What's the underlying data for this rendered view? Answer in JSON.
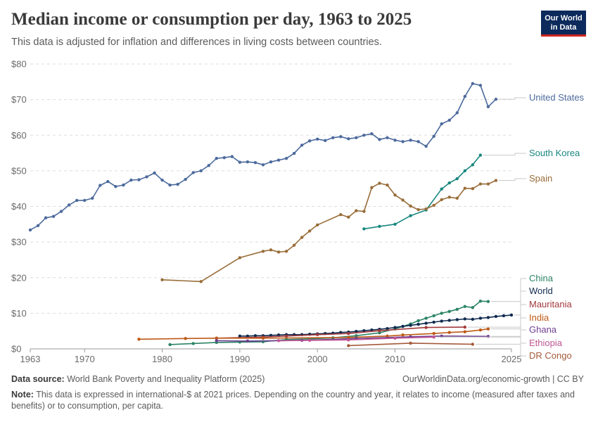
{
  "header": {
    "title": "Median income or consumption per day, 1963 to 2025",
    "subtitle": "This data is adjusted for inflation and differences in living costs between countries."
  },
  "logo": {
    "line1": "Our World",
    "line2": "in Data"
  },
  "footer": {
    "source_label": "Data source:",
    "source_text": "World Bank Poverty and Inequality Platform (2025)",
    "url_text": "OurWorldinData.org/economic-growth | CC BY",
    "note_label": "Note:",
    "note_text": "This data is expressed in international-$ at 2021 prices. Depending on the country and year, it relates to income (measured after taxes and benefits) or to consumption, per capita."
  },
  "chart_data": {
    "type": "line",
    "title": "Median income or consumption per day, 1963 to 2025",
    "xlim": [
      1963,
      2025
    ],
    "ylim": [
      0,
      80
    ],
    "x_ticks": [
      1963,
      1970,
      1980,
      1990,
      2000,
      2010,
      2025
    ],
    "x_tick_labels": [
      "1963",
      "1970",
      "1980",
      "1990",
      "2000",
      "2010",
      "2025"
    ],
    "y_ticks": [
      0,
      10,
      20,
      30,
      40,
      50,
      60,
      70,
      80
    ],
    "y_tick_labels": [
      "$0",
      "$10",
      "$20",
      "$30",
      "$40",
      "$50",
      "$60",
      "$70",
      "$80"
    ],
    "grid": "horizontal dashed",
    "legend": "right, labels at line ends",
    "series": [
      {
        "name": "United States",
        "color": "#4c6a9c",
        "points": [
          [
            1963,
            33.4
          ],
          [
            1964,
            34.6
          ],
          [
            1965,
            36.8
          ],
          [
            1966,
            37.2
          ],
          [
            1967,
            38.6
          ],
          [
            1968,
            40.4
          ],
          [
            1969,
            41.7
          ],
          [
            1970,
            41.7
          ],
          [
            1971,
            42.3
          ],
          [
            1972,
            45.9
          ],
          [
            1973,
            47.0
          ],
          [
            1974,
            45.6
          ],
          [
            1975,
            46.0
          ],
          [
            1976,
            47.4
          ],
          [
            1977,
            47.5
          ],
          [
            1978,
            48.3
          ],
          [
            1979,
            49.4
          ],
          [
            1980,
            47.4
          ],
          [
            1981,
            46.0
          ],
          [
            1982,
            46.2
          ],
          [
            1983,
            47.6
          ],
          [
            1984,
            49.5
          ],
          [
            1985,
            50.0
          ],
          [
            1986,
            51.5
          ],
          [
            1987,
            53.5
          ],
          [
            1988,
            53.7
          ],
          [
            1989,
            54.0
          ],
          [
            1990,
            52.4
          ],
          [
            1991,
            52.5
          ],
          [
            1992,
            52.3
          ],
          [
            1993,
            51.7
          ],
          [
            1994,
            52.5
          ],
          [
            1995,
            53.0
          ],
          [
            1996,
            53.5
          ],
          [
            1997,
            54.9
          ],
          [
            1998,
            57.2
          ],
          [
            1999,
            58.4
          ],
          [
            2000,
            58.9
          ],
          [
            2001,
            58.5
          ],
          [
            2002,
            59.3
          ],
          [
            2003,
            59.6
          ],
          [
            2004,
            59.0
          ],
          [
            2005,
            59.3
          ],
          [
            2006,
            60.0
          ],
          [
            2007,
            60.4
          ],
          [
            2008,
            58.8
          ],
          [
            2009,
            59.3
          ],
          [
            2010,
            58.6
          ],
          [
            2011,
            58.2
          ],
          [
            2012,
            58.6
          ],
          [
            2013,
            58.2
          ],
          [
            2014,
            56.9
          ],
          [
            2015,
            59.7
          ],
          [
            2016,
            63.2
          ],
          [
            2017,
            64.2
          ],
          [
            2018,
            66.3
          ],
          [
            2019,
            70.9
          ],
          [
            2020,
            74.5
          ],
          [
            2021,
            74.0
          ],
          [
            2022,
            68.0
          ],
          [
            2023,
            70.1
          ]
        ]
      },
      {
        "name": "South Korea",
        "color": "#18877f",
        "points": [
          [
            2006,
            33.7
          ],
          [
            2008,
            34.4
          ],
          [
            2010,
            35.0
          ],
          [
            2012,
            37.4
          ],
          [
            2014,
            39.0
          ],
          [
            2016,
            44.9
          ],
          [
            2017,
            46.6
          ],
          [
            2018,
            47.8
          ],
          [
            2019,
            50.0
          ],
          [
            2020,
            51.7
          ],
          [
            2021,
            54.4
          ]
        ]
      },
      {
        "name": "Spain",
        "color": "#996d39",
        "points": [
          [
            1980,
            19.4
          ],
          [
            1985,
            18.9
          ],
          [
            1990,
            25.6
          ],
          [
            1993,
            27.4
          ],
          [
            1994,
            27.8
          ],
          [
            1995,
            27.2
          ],
          [
            1996,
            27.4
          ],
          [
            1997,
            29.1
          ],
          [
            1998,
            31.3
          ],
          [
            1999,
            33.1
          ],
          [
            2000,
            34.8
          ],
          [
            2003,
            37.7
          ],
          [
            2004,
            37.0
          ],
          [
            2005,
            38.8
          ],
          [
            2006,
            38.6
          ],
          [
            2007,
            45.3
          ],
          [
            2008,
            46.5
          ],
          [
            2009,
            46.0
          ],
          [
            2010,
            43.2
          ],
          [
            2011,
            41.8
          ],
          [
            2012,
            40.1
          ],
          [
            2013,
            39.1
          ],
          [
            2014,
            39.3
          ],
          [
            2015,
            40.3
          ],
          [
            2016,
            41.9
          ],
          [
            2017,
            42.6
          ],
          [
            2018,
            42.3
          ],
          [
            2019,
            45.1
          ],
          [
            2020,
            45.0
          ],
          [
            2021,
            46.3
          ],
          [
            2022,
            46.3
          ],
          [
            2023,
            47.3
          ]
        ]
      },
      {
        "name": "China",
        "color": "#2c8465",
        "points": [
          [
            1981,
            1.2
          ],
          [
            1984,
            1.5
          ],
          [
            1987,
            1.8
          ],
          [
            1990,
            1.9
          ],
          [
            1993,
            2.0
          ],
          [
            1996,
            2.6
          ],
          [
            1999,
            2.8
          ],
          [
            2002,
            3.1
          ],
          [
            2005,
            3.7
          ],
          [
            2008,
            4.5
          ],
          [
            2010,
            5.6
          ],
          [
            2011,
            6.3
          ],
          [
            2012,
            7.0
          ],
          [
            2013,
            7.9
          ],
          [
            2014,
            8.6
          ],
          [
            2015,
            9.3
          ],
          [
            2016,
            10.0
          ],
          [
            2017,
            10.5
          ],
          [
            2018,
            11.1
          ],
          [
            2019,
            11.9
          ],
          [
            2020,
            11.6
          ],
          [
            2021,
            13.4
          ],
          [
            2022,
            13.3
          ]
        ]
      },
      {
        "name": "World",
        "color": "#0f2a4e",
        "points": [
          [
            1990,
            3.6
          ],
          [
            1991,
            3.6
          ],
          [
            1992,
            3.7
          ],
          [
            1993,
            3.7
          ],
          [
            1994,
            3.8
          ],
          [
            1995,
            3.9
          ],
          [
            1996,
            4.0
          ],
          [
            1997,
            4.0
          ],
          [
            1998,
            4.0
          ],
          [
            1999,
            4.1
          ],
          [
            2000,
            4.2
          ],
          [
            2001,
            4.3
          ],
          [
            2002,
            4.4
          ],
          [
            2003,
            4.6
          ],
          [
            2004,
            4.7
          ],
          [
            2005,
            4.9
          ],
          [
            2006,
            5.1
          ],
          [
            2007,
            5.3
          ],
          [
            2008,
            5.5
          ],
          [
            2009,
            5.7
          ],
          [
            2010,
            6.0
          ],
          [
            2011,
            6.3
          ],
          [
            2012,
            6.6
          ],
          [
            2013,
            6.9
          ],
          [
            2014,
            7.2
          ],
          [
            2015,
            7.5
          ],
          [
            2016,
            7.8
          ],
          [
            2017,
            8.0
          ],
          [
            2018,
            8.2
          ],
          [
            2019,
            8.4
          ],
          [
            2020,
            8.3
          ],
          [
            2021,
            8.6
          ],
          [
            2022,
            8.8
          ],
          [
            2023,
            9.1
          ],
          [
            2024,
            9.3
          ],
          [
            2025,
            9.5
          ]
        ]
      },
      {
        "name": "Mauritania",
        "color": "#a2393c",
        "points": [
          [
            1987,
            3.0
          ],
          [
            1993,
            3.3
          ],
          [
            1996,
            3.6
          ],
          [
            2000,
            4.0
          ],
          [
            2004,
            4.3
          ],
          [
            2008,
            5.1
          ],
          [
            2014,
            6.0
          ],
          [
            2019,
            6.1
          ]
        ]
      },
      {
        "name": "India",
        "color": "#be5915",
        "points": [
          [
            1977,
            2.7
          ],
          [
            1983,
            2.9
          ],
          [
            1987,
            3.0
          ],
          [
            1993,
            3.0
          ],
          [
            2004,
            3.2
          ],
          [
            2009,
            3.6
          ],
          [
            2011,
            3.9
          ],
          [
            2015,
            4.3
          ],
          [
            2017,
            4.6
          ],
          [
            2019,
            4.8
          ],
          [
            2021,
            5.3
          ],
          [
            2022,
            5.6
          ]
        ]
      },
      {
        "name": "Ghana",
        "color": "#6d3e91",
        "points": [
          [
            1987,
            2.3
          ],
          [
            1991,
            2.2
          ],
          [
            1998,
            2.4
          ],
          [
            2005,
            2.9
          ],
          [
            2012,
            3.4
          ],
          [
            2016,
            3.6
          ],
          [
            2022,
            3.5
          ]
        ]
      },
      {
        "name": "Ethiopia",
        "color": "#c05693",
        "points": [
          [
            1995,
            2.3
          ],
          [
            1999,
            2.4
          ],
          [
            2004,
            2.5
          ],
          [
            2010,
            3.0
          ],
          [
            2015,
            3.3
          ]
        ]
      },
      {
        "name": "DR Congo",
        "color": "#a45a3b",
        "points": [
          [
            2004,
            0.9
          ],
          [
            2012,
            1.6
          ],
          [
            2020,
            1.3
          ]
        ]
      }
    ]
  }
}
